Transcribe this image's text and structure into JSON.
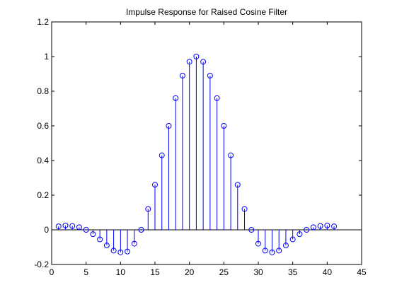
{
  "chart_data": {
    "type": "stem",
    "title": "Impulse Response for Raised Cosine Filter",
    "xlabel": "",
    "ylabel": "",
    "xlim": [
      0,
      45
    ],
    "ylim": [
      -0.2,
      1.2
    ],
    "xticks": [
      "0",
      "5",
      "10",
      "15",
      "20",
      "25",
      "30",
      "35",
      "40",
      "45"
    ],
    "yticks": [
      "-0.2",
      "0",
      "0.2",
      "0.4",
      "0.6",
      "0.8",
      "1",
      "1.2"
    ],
    "grid": false,
    "baseline": 0,
    "color": "#0000ff",
    "x": [
      1,
      2,
      3,
      4,
      5,
      6,
      7,
      8,
      9,
      10,
      11,
      12,
      13,
      14,
      15,
      16,
      17,
      18,
      19,
      20,
      21,
      22,
      23,
      24,
      25,
      26,
      27,
      28,
      29,
      30,
      31,
      32,
      33,
      34,
      35,
      36,
      37,
      38,
      39,
      40,
      41
    ],
    "values": [
      0.02,
      0.025,
      0.022,
      0.015,
      0.0,
      -0.025,
      -0.055,
      -0.09,
      -0.12,
      -0.13,
      -0.125,
      -0.08,
      0.0,
      0.12,
      0.26,
      0.43,
      0.6,
      0.76,
      0.89,
      0.97,
      1.0,
      0.97,
      0.89,
      0.76,
      0.6,
      0.43,
      0.26,
      0.12,
      0.0,
      -0.08,
      -0.12,
      -0.13,
      -0.12,
      -0.09,
      -0.055,
      -0.025,
      0.0,
      0.015,
      0.022,
      0.025,
      0.02
    ]
  }
}
